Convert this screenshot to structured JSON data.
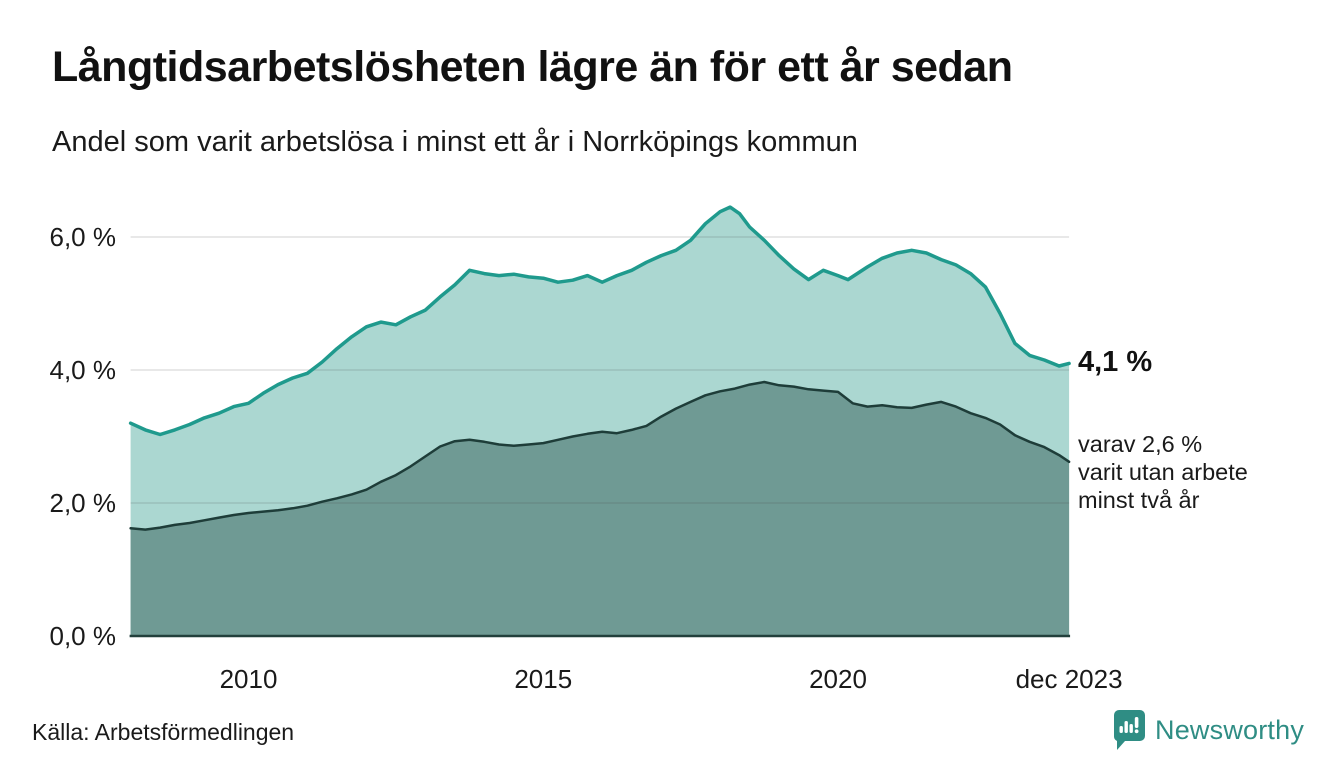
{
  "header": {
    "title": "Långtidsarbetslösheten lägre än för ett år sedan",
    "subtitle": "Andel som varit arbetslösa i minst ett år i Norrköpings kommun"
  },
  "chart_data": {
    "type": "area",
    "title": "Långtidsarbetslösheten lägre än för ett år sedan",
    "subtitle": "Andel som varit arbetslösa i minst ett år i Norrköpings kommun",
    "unit": "%",
    "x_range": [
      2008.0,
      2023.92
    ],
    "ylim": [
      0,
      6.6
    ],
    "grid": "horizontal",
    "y_ticks": [
      {
        "value": 0.0,
        "label": "0,0 %"
      },
      {
        "value": 2.0,
        "label": "2,0 %"
      },
      {
        "value": 4.0,
        "label": "4,0 %"
      },
      {
        "value": 6.0,
        "label": "6,0 %"
      }
    ],
    "x_ticks": [
      {
        "x": 2010.0,
        "label": "2010"
      },
      {
        "x": 2015.0,
        "label": "2015"
      },
      {
        "x": 2020.0,
        "label": "2020"
      },
      {
        "x": 2023.92,
        "label": "dec 2023"
      }
    ],
    "series": [
      {
        "name": "Andel arbetslösa minst ett år",
        "line_color": "#1f9a8d",
        "fill_color": "#abd7d1",
        "line_width": 3.5,
        "points": [
          [
            2008.0,
            3.2
          ],
          [
            2008.25,
            3.1
          ],
          [
            2008.5,
            3.03
          ],
          [
            2008.75,
            3.1
          ],
          [
            2009.0,
            3.18
          ],
          [
            2009.25,
            3.28
          ],
          [
            2009.5,
            3.35
          ],
          [
            2009.75,
            3.45
          ],
          [
            2010.0,
            3.5
          ],
          [
            2010.25,
            3.65
          ],
          [
            2010.5,
            3.78
          ],
          [
            2010.75,
            3.88
          ],
          [
            2011.0,
            3.95
          ],
          [
            2011.25,
            4.12
          ],
          [
            2011.5,
            4.32
          ],
          [
            2011.75,
            4.5
          ],
          [
            2012.0,
            4.65
          ],
          [
            2012.25,
            4.72
          ],
          [
            2012.5,
            4.68
          ],
          [
            2012.75,
            4.8
          ],
          [
            2013.0,
            4.9
          ],
          [
            2013.25,
            5.1
          ],
          [
            2013.5,
            5.28
          ],
          [
            2013.75,
            5.5
          ],
          [
            2014.0,
            5.45
          ],
          [
            2014.25,
            5.42
          ],
          [
            2014.5,
            5.44
          ],
          [
            2014.75,
            5.4
          ],
          [
            2015.0,
            5.38
          ],
          [
            2015.25,
            5.32
          ],
          [
            2015.5,
            5.35
          ],
          [
            2015.75,
            5.42
          ],
          [
            2016.0,
            5.32
          ],
          [
            2016.25,
            5.42
          ],
          [
            2016.5,
            5.5
          ],
          [
            2016.75,
            5.62
          ],
          [
            2017.0,
            5.72
          ],
          [
            2017.25,
            5.8
          ],
          [
            2017.5,
            5.95
          ],
          [
            2017.75,
            6.2
          ],
          [
            2018.0,
            6.38
          ],
          [
            2018.17,
            6.45
          ],
          [
            2018.33,
            6.35
          ],
          [
            2018.5,
            6.15
          ],
          [
            2018.75,
            5.95
          ],
          [
            2019.0,
            5.72
          ],
          [
            2019.25,
            5.52
          ],
          [
            2019.5,
            5.36
          ],
          [
            2019.75,
            5.5
          ],
          [
            2020.0,
            5.42
          ],
          [
            2020.17,
            5.36
          ],
          [
            2020.5,
            5.55
          ],
          [
            2020.75,
            5.68
          ],
          [
            2021.0,
            5.76
          ],
          [
            2021.25,
            5.8
          ],
          [
            2021.5,
            5.76
          ],
          [
            2021.75,
            5.66
          ],
          [
            2022.0,
            5.58
          ],
          [
            2022.25,
            5.45
          ],
          [
            2022.5,
            5.25
          ],
          [
            2022.75,
            4.85
          ],
          [
            2023.0,
            4.4
          ],
          [
            2023.25,
            4.22
          ],
          [
            2023.5,
            4.15
          ],
          [
            2023.75,
            4.06
          ],
          [
            2023.92,
            4.1
          ]
        ]
      },
      {
        "name": "Andel arbetslösa minst två år",
        "line_color": "#1e3d39",
        "fill_color": "#6f9a94",
        "line_width": 2.5,
        "points": [
          [
            2008.0,
            1.62
          ],
          [
            2008.25,
            1.6
          ],
          [
            2008.5,
            1.63
          ],
          [
            2008.75,
            1.67
          ],
          [
            2009.0,
            1.7
          ],
          [
            2009.25,
            1.74
          ],
          [
            2009.5,
            1.78
          ],
          [
            2009.75,
            1.82
          ],
          [
            2010.0,
            1.85
          ],
          [
            2010.25,
            1.87
          ],
          [
            2010.5,
            1.89
          ],
          [
            2010.75,
            1.92
          ],
          [
            2011.0,
            1.96
          ],
          [
            2011.25,
            2.02
          ],
          [
            2011.5,
            2.07
          ],
          [
            2011.75,
            2.13
          ],
          [
            2012.0,
            2.2
          ],
          [
            2012.25,
            2.32
          ],
          [
            2012.5,
            2.42
          ],
          [
            2012.75,
            2.55
          ],
          [
            2013.0,
            2.7
          ],
          [
            2013.25,
            2.85
          ],
          [
            2013.5,
            2.93
          ],
          [
            2013.75,
            2.95
          ],
          [
            2014.0,
            2.92
          ],
          [
            2014.25,
            2.88
          ],
          [
            2014.5,
            2.86
          ],
          [
            2014.75,
            2.88
          ],
          [
            2015.0,
            2.9
          ],
          [
            2015.25,
            2.95
          ],
          [
            2015.5,
            3.0
          ],
          [
            2015.75,
            3.04
          ],
          [
            2016.0,
            3.07
          ],
          [
            2016.25,
            3.05
          ],
          [
            2016.5,
            3.1
          ],
          [
            2016.75,
            3.16
          ],
          [
            2017.0,
            3.3
          ],
          [
            2017.25,
            3.42
          ],
          [
            2017.5,
            3.52
          ],
          [
            2017.75,
            3.62
          ],
          [
            2018.0,
            3.68
          ],
          [
            2018.25,
            3.72
          ],
          [
            2018.5,
            3.78
          ],
          [
            2018.75,
            3.82
          ],
          [
            2019.0,
            3.77
          ],
          [
            2019.25,
            3.75
          ],
          [
            2019.5,
            3.71
          ],
          [
            2019.75,
            3.69
          ],
          [
            2020.0,
            3.67
          ],
          [
            2020.25,
            3.5
          ],
          [
            2020.5,
            3.45
          ],
          [
            2020.75,
            3.47
          ],
          [
            2021.0,
            3.44
          ],
          [
            2021.25,
            3.43
          ],
          [
            2021.5,
            3.48
          ],
          [
            2021.75,
            3.52
          ],
          [
            2022.0,
            3.45
          ],
          [
            2022.25,
            3.35
          ],
          [
            2022.5,
            3.28
          ],
          [
            2022.75,
            3.18
          ],
          [
            2023.0,
            3.02
          ],
          [
            2023.25,
            2.92
          ],
          [
            2023.5,
            2.84
          ],
          [
            2023.75,
            2.72
          ],
          [
            2023.92,
            2.62
          ]
        ]
      }
    ],
    "annotations": {
      "latest_value": "4,1 %",
      "note_line1": "varav 2,6 %",
      "note_line2": "varit utan arbete",
      "note_line3": "minst två år"
    },
    "legend_position": "none",
    "gridline_color": "#d9d9d9",
    "axis_line_color": "#22403c"
  },
  "footer": {
    "source": "Källa: Arbetsförmedlingen",
    "brand_name": "Newsworthy",
    "brand_color": "#2f8d84"
  }
}
